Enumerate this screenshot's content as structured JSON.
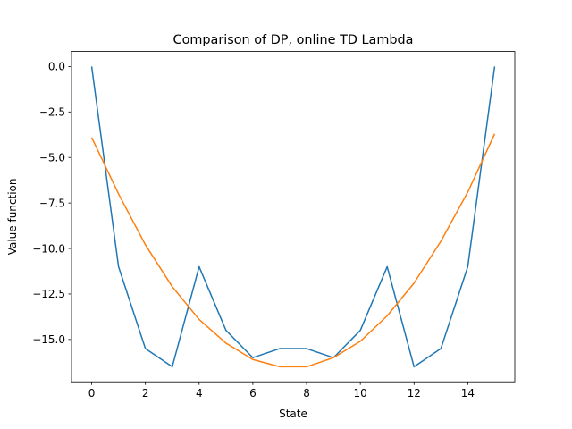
{
  "chart_data": {
    "type": "line",
    "title": "Comparison of DP, online TD Lambda",
    "xlabel": "State",
    "ylabel": "Value function",
    "x": [
      0,
      1,
      2,
      3,
      4,
      5,
      6,
      7,
      8,
      9,
      10,
      11,
      12,
      13,
      14,
      15
    ],
    "xlim": [
      -0.75,
      15.75
    ],
    "ylim": [
      -17.325,
      0.825
    ],
    "xticks": [
      0,
      2,
      4,
      6,
      8,
      10,
      12,
      14
    ],
    "xtick_labels": [
      "0",
      "2",
      "4",
      "6",
      "8",
      "10",
      "12",
      "14"
    ],
    "yticks": [
      0,
      -2.5,
      -5,
      -7.5,
      -10,
      -12.5,
      -15
    ],
    "ytick_labels": [
      "0.0",
      "−2.5",
      "−5.0",
      "−7.5",
      "−10.0",
      "−12.5",
      "−15.0"
    ],
    "grid": false,
    "series": [
      {
        "color": "#1f77b4",
        "values": [
          0,
          -11,
          -15.5,
          -16.5,
          -11,
          -14.5,
          -16,
          -15.5,
          -15.5,
          -16,
          -14.5,
          -11,
          -16.5,
          -15.5,
          -11,
          0
        ]
      },
      {
        "color": "#ff7f0e",
        "values": [
          -3.9,
          -7.0,
          -9.8,
          -12.1,
          -13.9,
          -15.2,
          -16.1,
          -16.5,
          -16.5,
          -16.0,
          -15.1,
          -13.7,
          -11.9,
          -9.6,
          -6.9,
          -3.7
        ]
      }
    ]
  }
}
